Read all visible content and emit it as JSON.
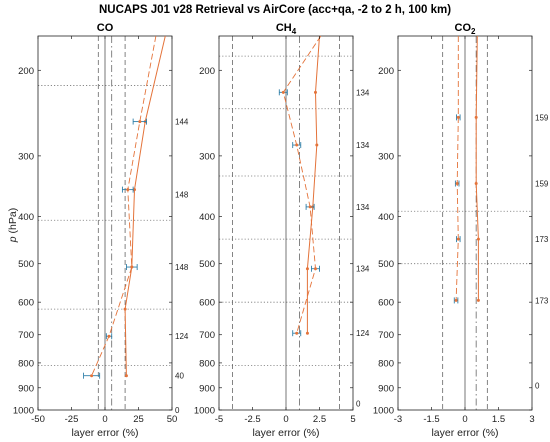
{
  "title": "NUCAPS J01 v28 Retrieval vs AirCore (acc+qa, -2 to 2 h, 100 km)",
  "ylabel_symbol": "p",
  "ylabel_unit": " (hPa)",
  "xlabel": "layer error (%)",
  "colors": {
    "retrieval": "#e4733a",
    "errorbar": "#2f7fa8",
    "reference": "#555555"
  },
  "chart_data": [
    {
      "type": "line",
      "panel_id": "co",
      "title_main": "CO",
      "title_sub": "",
      "xlim": [
        -50,
        50
      ],
      "xticks": [
        -50,
        -25,
        0,
        25,
        50
      ],
      "ylim": [
        1000,
        170
      ],
      "yscale": "log",
      "yticks": [
        200,
        300,
        400,
        500,
        600,
        700,
        800,
        900,
        1000
      ],
      "layer_boundaries": [
        215,
        407,
        620,
        810
      ],
      "vertical_solid": [
        0
      ],
      "vertical_dashed": [
        -5,
        15
      ],
      "vertical_dashdot": [
        5
      ],
      "series": [
        {
          "style": "solid",
          "values": [
            [
              45,
              170
            ],
            [
              30,
              255
            ],
            [
              22,
              352
            ],
            [
              20,
              508
            ],
            [
              15,
              620
            ],
            [
              16,
              850
            ]
          ]
        },
        {
          "style": "dashed",
          "values": [
            [
              38,
              170
            ],
            [
              26,
              255
            ],
            [
              17,
              352
            ],
            [
              20,
              508
            ],
            [
              3,
              705
            ],
            [
              -10,
              850
            ]
          ]
        }
      ],
      "error_points": [
        {
          "p": 255,
          "x": 26,
          "err": 5
        },
        {
          "p": 352,
          "x": 17,
          "err": 4
        },
        {
          "p": 508,
          "x": 20,
          "err": 4
        },
        {
          "p": 705,
          "x": 3,
          "err": 2
        },
        {
          "p": 850,
          "x": -10,
          "err": 6
        }
      ],
      "counts": [
        {
          "p": 255,
          "label": "144"
        },
        {
          "p": 360,
          "label": "148"
        },
        {
          "p": 508,
          "label": "148"
        },
        {
          "p": 705,
          "label": "124"
        },
        {
          "p": 850,
          "label": "40"
        },
        {
          "p": 1000,
          "label": "0"
        }
      ]
    },
    {
      "type": "line",
      "panel_id": "ch4",
      "title_main": "CH",
      "title_sub": "4",
      "xlim": [
        -5,
        5
      ],
      "xticks": [
        -5,
        -2.5,
        0,
        2.5,
        5
      ],
      "ylim": [
        1000,
        170
      ],
      "yscale": "log",
      "yticks": [
        200,
        300,
        400,
        500,
        600,
        700,
        800,
        900,
        1000
      ],
      "layer_boundaries": [
        187,
        240,
        330,
        445,
        600,
        810
      ],
      "vertical_solid": [
        0
      ],
      "vertical_dashed": [
        -4,
        4
      ],
      "vertical_dashdot": [
        1
      ],
      "series": [
        {
          "style": "solid",
          "values": [
            [
              2.5,
              170
            ],
            [
              2.2,
              222
            ],
            [
              2.3,
              285
            ],
            [
              2.0,
              382
            ],
            [
              1.6,
              512
            ],
            [
              1.6,
              695
            ]
          ]
        },
        {
          "style": "dashed",
          "values": [
            [
              2.6,
              170
            ],
            [
              -0.2,
              222
            ],
            [
              0.8,
              285
            ],
            [
              1.8,
              382
            ],
            [
              2.2,
              512
            ],
            [
              0.8,
              695
            ]
          ]
        }
      ],
      "error_points": [
        {
          "p": 222,
          "x": -0.2,
          "err": 0.3
        },
        {
          "p": 285,
          "x": 0.8,
          "err": 0.3
        },
        {
          "p": 382,
          "x": 1.8,
          "err": 0.3
        },
        {
          "p": 512,
          "x": 2.2,
          "err": 0.3
        },
        {
          "p": 695,
          "x": 0.8,
          "err": 0.3
        }
      ],
      "counts": [
        {
          "p": 222,
          "label": "134"
        },
        {
          "p": 285,
          "label": "134"
        },
        {
          "p": 382,
          "label": "134"
        },
        {
          "p": 512,
          "label": "134"
        },
        {
          "p": 695,
          "label": "124"
        },
        {
          "p": 970,
          "label": "0"
        }
      ]
    },
    {
      "type": "line",
      "panel_id": "co2",
      "title_main": "CO",
      "title_sub": "2",
      "xlim": [
        -3,
        3
      ],
      "xticks": [
        -3,
        -1.5,
        0,
        1.5,
        3
      ],
      "ylim": [
        1000,
        170
      ],
      "yscale": "log",
      "yticks": [
        200,
        300,
        400,
        500,
        600,
        700,
        800,
        900,
        1000
      ],
      "layer_boundaries": [
        390,
        500
      ],
      "vertical_solid": [
        0
      ],
      "vertical_dashed": [
        -1,
        1
      ],
      "vertical_dashdot": [
        0.5
      ],
      "series": [
        {
          "style": "solid",
          "values": [
            [
              0.55,
              170
            ],
            [
              0.5,
              250
            ],
            [
              0.5,
              342
            ],
            [
              0.6,
              445
            ],
            [
              0.6,
              595
            ]
          ]
        },
        {
          "style": "dashed",
          "values": [
            [
              -0.3,
              170
            ],
            [
              -0.3,
              250
            ],
            [
              -0.35,
              342
            ],
            [
              -0.3,
              445
            ],
            [
              -0.4,
              595
            ]
          ]
        }
      ],
      "error_points": [
        {
          "p": 250,
          "x": -0.3,
          "err": 0.08
        },
        {
          "p": 342,
          "x": -0.35,
          "err": 0.08
        },
        {
          "p": 445,
          "x": -0.3,
          "err": 0.08
        },
        {
          "p": 595,
          "x": -0.4,
          "err": 0.08
        }
      ],
      "counts": [
        {
          "p": 250,
          "label": "159"
        },
        {
          "p": 342,
          "label": "159"
        },
        {
          "p": 445,
          "label": "173"
        },
        {
          "p": 595,
          "label": "173"
        },
        {
          "p": 890,
          "label": "0"
        }
      ]
    }
  ]
}
